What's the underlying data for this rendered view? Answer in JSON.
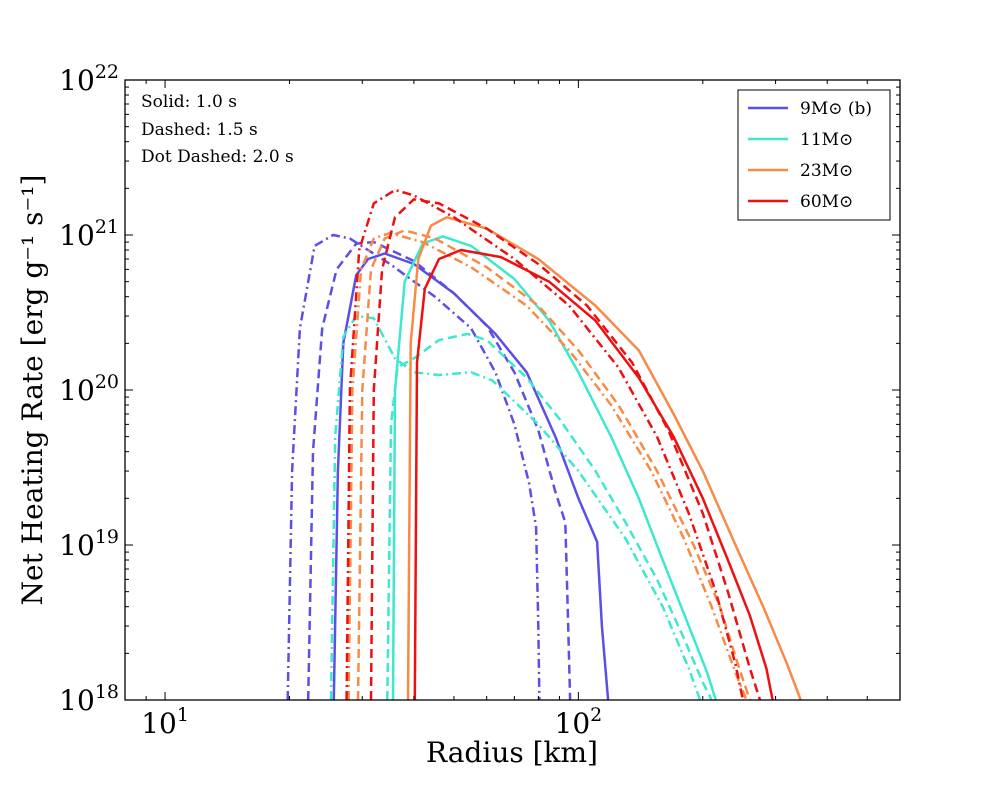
{
  "chart_data": {
    "type": "line",
    "title": "",
    "xlabel": "Radius [km]",
    "ylabel": "Net Heating Rate [erg g⁻¹ s⁻¹]",
    "xscale": "log",
    "yscale": "log",
    "xlim": [
      8.0,
      600.0
    ],
    "ylim": [
      1e+18,
      1e+22
    ],
    "x_ticks": [
      {
        "value": 10,
        "label_base": "10",
        "label_exp": "1"
      },
      {
        "value": 100,
        "label_base": "10",
        "label_exp": "2"
      }
    ],
    "y_ticks": [
      {
        "value": 1e+18,
        "label_base": "10",
        "label_exp": "18"
      },
      {
        "value": 1e+19,
        "label_base": "10",
        "label_exp": "19"
      },
      {
        "value": 1e+20,
        "label_base": "10",
        "label_exp": "20"
      },
      {
        "value": 1e+21,
        "label_base": "10",
        "label_exp": "21"
      },
      {
        "value": 1e+22,
        "label_base": "10",
        "label_exp": "22"
      }
    ],
    "annotations": [
      "Solid: 1.0 s",
      "Dashed: 1.5 s",
      "Dot Dashed: 2.0 s"
    ],
    "legend_position": "top-right",
    "legend": [
      {
        "label": "9M⊙ (b)",
        "color": "#5b4fe8"
      },
      {
        "label": "11M⊙",
        "color": "#3ee8cf"
      },
      {
        "label": "23M⊙",
        "color": "#f88a46"
      },
      {
        "label": "60M⊙",
        "color": "#ee1010"
      }
    ],
    "series": [
      {
        "name": "9M⊙ (b) 1.0 s",
        "color": "#5b4fe8",
        "style": "solid",
        "points": [
          [
            25.6,
            1e+18
          ],
          [
            26.2,
            3e+19
          ],
          [
            27.0,
            2e+20
          ],
          [
            29.0,
            5.5e+20
          ],
          [
            31,
            7e+20
          ],
          [
            34,
            7.6e+20
          ],
          [
            40,
            6.5e+20
          ],
          [
            50,
            4.2e+20
          ],
          [
            63,
            2.3e+20
          ],
          [
            75,
            1.3e+20
          ],
          [
            88,
            5e+19
          ],
          [
            100,
            2e+19
          ],
          [
            111,
            1.05e+19
          ],
          [
            114,
            3e+18
          ],
          [
            118,
            1e+18
          ]
        ]
      },
      {
        "name": "9M⊙ (b) 1.5 s",
        "color": "#5b4fe8",
        "style": "dashed",
        "points": [
          [
            22.2,
            1e+18
          ],
          [
            22.8,
            4e+19
          ],
          [
            24.0,
            2.5e+20
          ],
          [
            26,
            6e+20
          ],
          [
            29,
            8.8e+20
          ],
          [
            32,
            9e+20
          ],
          [
            40,
            6.8e+20
          ],
          [
            50,
            4.2e+20
          ],
          [
            60,
            2.6e+20
          ],
          [
            70,
            1.3e+20
          ],
          [
            80,
            5.5e+19
          ],
          [
            88,
            2.2e+19
          ],
          [
            93,
            1.4e+19
          ],
          [
            94.5,
            3e+18
          ],
          [
            95.5,
            1e+18
          ]
        ]
      },
      {
        "name": "9M⊙ (b) 2.0 s",
        "color": "#5b4fe8",
        "style": "dashdot",
        "points": [
          [
            19.8,
            1e+18
          ],
          [
            20.3,
            3e+19
          ],
          [
            21.2,
            2.5e+20
          ],
          [
            23.0,
            8.5e+20
          ],
          [
            25.5,
            1e+21
          ],
          [
            28,
            9.5e+20
          ],
          [
            35,
            6.5e+20
          ],
          [
            45,
            4e+20
          ],
          [
            55,
            2.5e+20
          ],
          [
            63,
            1.3e+20
          ],
          [
            70,
            6e+19
          ],
          [
            76,
            2.5e+19
          ],
          [
            79,
            1.3e+19
          ],
          [
            80,
            3e+18
          ],
          [
            80.5,
            1e+18
          ]
        ]
      },
      {
        "name": "11M⊙ 1.0 s",
        "color": "#3ee8cf",
        "style": "solid",
        "points": [
          [
            35.6,
            1e+18
          ],
          [
            36.0,
            1e+20
          ],
          [
            38,
            5e+20
          ],
          [
            42,
            8.8e+20
          ],
          [
            47,
            9.8e+20
          ],
          [
            55,
            8.5e+20
          ],
          [
            70,
            5.2e+20
          ],
          [
            85,
            2.8e+20
          ],
          [
            100,
            1.3e+20
          ],
          [
            120,
            5e+19
          ],
          [
            140,
            2e+19
          ],
          [
            160,
            8e+18
          ],
          [
            185,
            3e+18
          ],
          [
            205,
            1.5e+18
          ],
          [
            215,
            1e+18
          ]
        ]
      },
      {
        "name": "11M⊙ 1.5 s",
        "color": "#3ee8cf",
        "style": "dashed",
        "points": [
          [
            34.5,
            1e+18
          ],
          [
            35.2,
            6e+19
          ],
          [
            36.5,
            1.4e+20
          ],
          [
            40,
            1.6e+20
          ],
          [
            46,
            2.1e+20
          ],
          [
            54,
            2.3e+20
          ],
          [
            60,
            2.1e+20
          ],
          [
            75,
            1.2e+20
          ],
          [
            90,
            6.5e+19
          ],
          [
            110,
            3e+19
          ],
          [
            130,
            1.4e+19
          ],
          [
            155,
            6e+18
          ],
          [
            180,
            2.5e+18
          ],
          [
            200,
            1.3e+18
          ],
          [
            210,
            1e+18
          ]
        ]
      },
      {
        "name": "11M⊙ 2.0 s",
        "color": "#3ee8cf",
        "style": "dashdot",
        "points": [
          [
            25.2,
            1e+18
          ],
          [
            25.8,
            5e+19
          ],
          [
            27,
            2.2e+20
          ],
          [
            29,
            3e+20
          ],
          [
            32,
            2.9e+20
          ],
          [
            36,
            1.6e+20
          ],
          [
            40,
            1.3e+20
          ],
          [
            46,
            1.25e+20
          ],
          [
            55,
            1.3e+20
          ],
          [
            62,
            1.15e+20
          ],
          [
            80,
            6e+19
          ],
          [
            100,
            3e+19
          ],
          [
            130,
            1.1e+19
          ],
          [
            160,
            4e+18
          ],
          [
            185,
            1.6e+18
          ],
          [
            197,
            1e+18
          ]
        ]
      },
      {
        "name": "23M⊙ 1.0 s",
        "color": "#f88a46",
        "style": "solid",
        "points": [
          [
            38.7,
            1e+18
          ],
          [
            39.3,
            2e+20
          ],
          [
            41,
            7e+20
          ],
          [
            44,
            1.15e+21
          ],
          [
            48,
            1.3e+21
          ],
          [
            60,
            1.1e+21
          ],
          [
            80,
            7e+20
          ],
          [
            110,
            3.5e+20
          ],
          [
            140,
            1.8e+20
          ],
          [
            170,
            7e+19
          ],
          [
            200,
            3e+19
          ],
          [
            240,
            1e+19
          ],
          [
            280,
            4e+18
          ],
          [
            320,
            1.7e+18
          ],
          [
            345,
            1e+18
          ]
        ]
      },
      {
        "name": "23M⊙ 1.5 s",
        "color": "#f88a46",
        "style": "dashed",
        "points": [
          [
            29.3,
            1e+18
          ],
          [
            30.0,
            1e+20
          ],
          [
            31.5,
            6e+20
          ],
          [
            34,
            9.5e+20
          ],
          [
            38,
            1.07e+21
          ],
          [
            45,
            9.5e+20
          ],
          [
            60,
            6.2e+20
          ],
          [
            80,
            3.5e+20
          ],
          [
            100,
            1.8e+20
          ],
          [
            125,
            8e+19
          ],
          [
            155,
            3e+19
          ],
          [
            190,
            1e+19
          ],
          [
            220,
            4e+18
          ],
          [
            245,
            1.6e+18
          ],
          [
            260,
            1e+18
          ]
        ]
      },
      {
        "name": "23M⊙ 2.0 s",
        "color": "#f88a46",
        "style": "dashdot",
        "points": [
          [
            27.8,
            1e+18
          ],
          [
            28.4,
            1e+20
          ],
          [
            29.8,
            6e+20
          ],
          [
            32,
            9.5e+20
          ],
          [
            35,
            1.03e+21
          ],
          [
            42,
            9e+20
          ],
          [
            55,
            6.2e+20
          ],
          [
            75,
            3.5e+20
          ],
          [
            95,
            1.8e+20
          ],
          [
            120,
            8e+19
          ],
          [
            150,
            3e+19
          ],
          [
            180,
            1.1e+19
          ],
          [
            210,
            4e+18
          ],
          [
            240,
            1.5e+18
          ],
          [
            255,
            1e+18
          ]
        ]
      },
      {
        "name": "60M⊙ 1.0 s",
        "color": "#ee1010",
        "style": "solid",
        "points": [
          [
            40.2,
            1e+18
          ],
          [
            40.7,
            1.5e+20
          ],
          [
            42.5,
            4.5e+20
          ],
          [
            46,
            7e+20
          ],
          [
            52,
            8e+20
          ],
          [
            65,
            7.2e+20
          ],
          [
            85,
            5e+20
          ],
          [
            110,
            2.8e+20
          ],
          [
            140,
            1.2e+20
          ],
          [
            170,
            5e+19
          ],
          [
            200,
            2e+19
          ],
          [
            230,
            8e+18
          ],
          [
            260,
            3.5e+18
          ],
          [
            285,
            1.6e+18
          ],
          [
            295,
            1e+18
          ]
        ]
      },
      {
        "name": "60M⊙ 1.5 s",
        "color": "#ee1010",
        "style": "dashed",
        "points": [
          [
            31.5,
            1e+18
          ],
          [
            32.0,
            1e+20
          ],
          [
            33.5,
            6e+20
          ],
          [
            36,
            1.3e+21
          ],
          [
            40,
            1.7e+21
          ],
          [
            46,
            1.6e+21
          ],
          [
            60,
            1.1e+21
          ],
          [
            80,
            6.5e+20
          ],
          [
            105,
            3.5e+20
          ],
          [
            135,
            1.5e+20
          ],
          [
            165,
            5.5e+19
          ],
          [
            200,
            1.6e+19
          ],
          [
            230,
            5e+18
          ],
          [
            260,
            1.6e+18
          ],
          [
            275,
            1e+18
          ]
        ]
      },
      {
        "name": "60M⊙ 2.0 s",
        "color": "#ee1010",
        "style": "dashdot",
        "points": [
          [
            27.5,
            1e+18
          ],
          [
            28.0,
            1e+20
          ],
          [
            29.5,
            8e+20
          ],
          [
            32,
            1.6e+21
          ],
          [
            36,
            1.95e+21
          ],
          [
            40,
            1.8e+21
          ],
          [
            50,
            1.3e+21
          ],
          [
            70,
            7e+20
          ],
          [
            95,
            3.5e+20
          ],
          [
            125,
            1.4e+20
          ],
          [
            155,
            5e+19
          ],
          [
            185,
            1.6e+19
          ],
          [
            215,
            5e+18
          ],
          [
            240,
            1.7e+18
          ],
          [
            250,
            1e+18
          ]
        ]
      }
    ]
  }
}
